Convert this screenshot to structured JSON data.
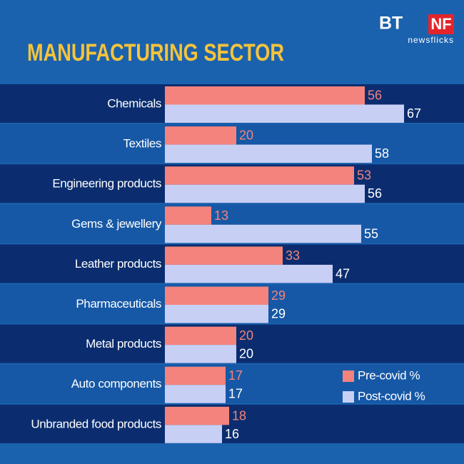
{
  "brand": {
    "main": "BT",
    "badge": "NF",
    "sub": "newsflicks"
  },
  "chart_data": {
    "type": "hbar",
    "title": "MANUFACTURING SECTOR",
    "categories": [
      "Chemicals",
      "Textiles",
      "Engineering products",
      "Gems & jewellery",
      "Leather products",
      "Pharmaceuticals",
      "Metal products",
      "Auto components",
      "Unbranded food products"
    ],
    "series": [
      {
        "name": "Pre-covid %",
        "color": "#f4837d",
        "values": [
          56,
          20,
          53,
          13,
          33,
          29,
          20,
          17,
          18
        ]
      },
      {
        "name": "Post-covid %",
        "color": "#c8cff5",
        "values": [
          67,
          58,
          56,
          55,
          47,
          29,
          20,
          17,
          16
        ]
      }
    ],
    "legend": "lower right"
  }
}
